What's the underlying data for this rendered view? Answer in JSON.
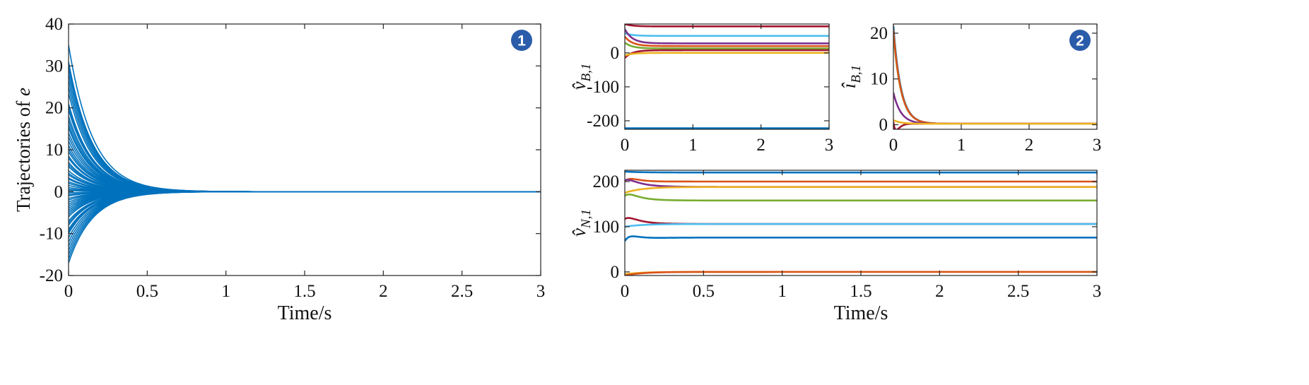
{
  "colors": {
    "axis": "#262626",
    "badge": "#2a5caa",
    "series": [
      "#0072BD",
      "#D95319",
      "#EDB120",
      "#7E2F8E",
      "#77AC30",
      "#4DBEEE",
      "#A2142F"
    ]
  },
  "chart_data": [
    {
      "id": "panel-1",
      "type": "line",
      "badge": "1",
      "xlabel": "Time/s",
      "ylabel": "Trajectories of e",
      "ylabel_main": "Trajectories of ",
      "ylabel_var": "e",
      "xlim": [
        0,
        3
      ],
      "ylim": [
        -20,
        40
      ],
      "xticks": [
        0,
        0.5,
        1,
        1.5,
        2,
        2.5,
        3
      ],
      "xtick_labels": [
        "0",
        "0.5",
        "1",
        "1.5",
        "2",
        "2.5",
        "3"
      ],
      "yticks": [
        -20,
        -10,
        0,
        10,
        20,
        30,
        40
      ],
      "ytick_labels": [
        "-20",
        "-10",
        "0",
        "10",
        "20",
        "30",
        "40"
      ],
      "decay_rate": 6.5,
      "line_color": "#0072BD",
      "initial_values": [
        35,
        31,
        30.2,
        29.5,
        28,
        26.5,
        25,
        23.5,
        21,
        20.4,
        19.5,
        18,
        17,
        16,
        15.2,
        14,
        13,
        12,
        11,
        10.2,
        9.5,
        8.5,
        8,
        7,
        6.5,
        6,
        5,
        4.4,
        4,
        3.3,
        3,
        2.4,
        2,
        1.5,
        1,
        0.6,
        0.3,
        -0.3,
        -0.7,
        -1,
        -1.6,
        -2,
        -2.5,
        -3,
        -3.5,
        -4,
        -4.5,
        -5,
        -5.5,
        -6,
        -7,
        -7.5,
        -8,
        -9,
        -9.5,
        -10,
        -11,
        -12,
        -13,
        -14,
        -15,
        -16,
        -17
      ]
    },
    {
      "id": "panel-vb",
      "type": "line",
      "xlabel": "",
      "ylabel": "v̂_B,1",
      "ylabel_main": "v̂",
      "ylabel_sub": "B,1",
      "xlim": [
        0,
        3
      ],
      "ylim": [
        -225,
        85
      ],
      "xticks": [
        0,
        1,
        2,
        3
      ],
      "xtick_labels": [
        "0",
        "1",
        "2",
        "3"
      ],
      "yticks": [
        -200,
        -100,
        0
      ],
      "ytick_labels": [
        "-200",
        "-100",
        "0"
      ],
      "series": [
        {
          "color": "#0072BD",
          "start": -222,
          "final": -222,
          "peak": 0
        },
        {
          "color": "#A2142F",
          "start": 85,
          "final": 78,
          "peak": 0
        },
        {
          "color": "#4DBEEE",
          "start": 58,
          "final": 50,
          "peak": 0
        },
        {
          "color": "#7E2F8E",
          "start": 70,
          "final": 28,
          "peak": 0
        },
        {
          "color": "#D95319",
          "start": 48,
          "final": 20,
          "peak": 0
        },
        {
          "color": "#77AC30",
          "start": 30,
          "final": 13,
          "peak": 0
        },
        {
          "color": "#A2142F",
          "start": -15,
          "final": 8,
          "peak": 0
        },
        {
          "color": "#EDB120",
          "start": -8,
          "final": 0,
          "peak": 0
        }
      ]
    },
    {
      "id": "panel-ib",
      "type": "line",
      "badge": "2",
      "xlabel": "",
      "ylabel": "î_B,1",
      "ylabel_main": "î",
      "ylabel_sub": "B,1",
      "xlim": [
        0,
        3
      ],
      "ylim": [
        -1,
        22
      ],
      "xticks": [
        0,
        1,
        2,
        3
      ],
      "xtick_labels": [
        "0",
        "1",
        "2",
        "3"
      ],
      "yticks": [
        0,
        10,
        20
      ],
      "ytick_labels": [
        "0",
        "10",
        "20"
      ],
      "series": [
        {
          "color": "#0072BD",
          "start": 21.5,
          "final": 0.2,
          "peak": 0
        },
        {
          "color": "#77AC30",
          "start": 20.2,
          "final": 0.2,
          "peak": 0
        },
        {
          "color": "#D95319",
          "start": 20.6,
          "final": 0.2,
          "peak": 0
        },
        {
          "color": "#7E2F8E",
          "start": 7,
          "final": 0.2,
          "peak": 0
        },
        {
          "color": "#A2142F",
          "start": 0.6,
          "final": 0.2,
          "peak": -1.6
        },
        {
          "color": "#EDB120",
          "start": 1.0,
          "final": 0.2,
          "peak": 0
        }
      ]
    },
    {
      "id": "panel-vn",
      "type": "line",
      "xlabel": "Time/s",
      "ylabel": "v̂_N,1",
      "ylabel_main": "v̂",
      "ylabel_sub": "N,1",
      "xlim": [
        0,
        3
      ],
      "ylim": [
        -8,
        225
      ],
      "xticks": [
        0,
        0.5,
        1,
        1.5,
        2,
        2.5,
        3
      ],
      "xtick_labels": [
        "0",
        "0.5",
        "1",
        "1.5",
        "2",
        "2.5",
        "3"
      ],
      "yticks": [
        0,
        100,
        200
      ],
      "ytick_labels": [
        "0",
        "100",
        "200"
      ],
      "series": [
        {
          "color": "#0072BD",
          "start": 222,
          "final": 220,
          "peak": 0
        },
        {
          "color": "#D95319",
          "start": 200,
          "final": 200,
          "peak": 6
        },
        {
          "color": "#7E2F8E",
          "start": 203,
          "final": 188,
          "peak": 4
        },
        {
          "color": "#EDB120",
          "start": 175,
          "final": 188,
          "peak": 0
        },
        {
          "color": "#77AC30",
          "start": 168,
          "final": 158,
          "peak": 6
        },
        {
          "color": "#A2142F",
          "start": 117,
          "final": 106,
          "peak": 5
        },
        {
          "color": "#4DBEEE",
          "start": 100,
          "final": 106,
          "peak": 0
        },
        {
          "color": "#0072BD",
          "start": 68,
          "final": 76,
          "peak": 8
        },
        {
          "color": "#EDB120",
          "start": -5,
          "final": 0,
          "peak": 0
        },
        {
          "color": "#D95319",
          "start": -8,
          "final": 0,
          "peak": 0
        }
      ]
    }
  ]
}
